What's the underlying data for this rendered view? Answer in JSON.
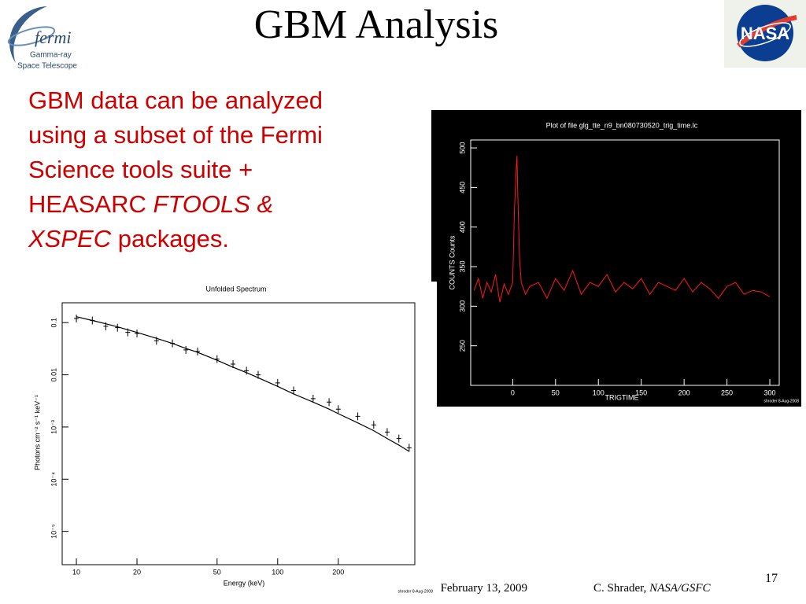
{
  "header": {
    "title": "GBM Analysis",
    "logo_name": "fermi",
    "logo_line1": "Gamma-ray",
    "logo_line2": "Space Telescope",
    "agency": "NASA"
  },
  "body": {
    "segments": [
      "GBM data can be analyzed",
      "using a subset of the Fermi",
      "Science tools suite +",
      "HEASARC ",
      "FTOOLS &",
      "XSPEC",
      " packages."
    ]
  },
  "footer": {
    "date": "February 13, 2009",
    "author": "C. Shrader, ",
    "org": "NASA/GSFC",
    "page": "17"
  },
  "chart_data": [
    {
      "type": "line",
      "title": "Plot of file glg_tte_n9_bn080730520_trig_time.lc",
      "x_label": "TRIGTIME",
      "y_label": "COUNTS  Counts",
      "credit": "shroder  8-Aug-2008",
      "color": "#ff1a1a",
      "x": [
        -45,
        -40,
        -35,
        -30,
        -25,
        -20,
        -15,
        -10,
        -5,
        0,
        2,
        4,
        5,
        6,
        8,
        10,
        15,
        20,
        30,
        40,
        50,
        60,
        70,
        80,
        90,
        100,
        110,
        120,
        130,
        140,
        150,
        160,
        170,
        180,
        190,
        200,
        210,
        220,
        230,
        240,
        250,
        260,
        270,
        280,
        290,
        300
      ],
      "values": [
        320,
        335,
        310,
        330,
        318,
        340,
        305,
        328,
        315,
        330,
        420,
        470,
        490,
        440,
        360,
        330,
        315,
        325,
        330,
        310,
        335,
        320,
        345,
        315,
        330,
        325,
        340,
        318,
        330,
        322,
        335,
        315,
        330,
        325,
        320,
        335,
        318,
        330,
        322,
        310,
        325,
        330,
        315,
        320,
        318,
        312
      ],
      "xlim": [
        -49,
        311
      ],
      "xticks": [
        0,
        50,
        100,
        150,
        200,
        250,
        300
      ],
      "ylim": [
        200,
        510
      ],
      "yticks": [
        250,
        300,
        350,
        400,
        450,
        500
      ]
    },
    {
      "type": "scatter",
      "title": "Unfolded Spectrum",
      "x_label": "Energy (keV)",
      "y_label": "Photons cm⁻² s⁻¹ keV⁻¹",
      "credit": "shroder  8-Aug-2008",
      "log_x": true,
      "log_y": true,
      "x": [
        10,
        12,
        14,
        16,
        18,
        20,
        25,
        30,
        35,
        40,
        50,
        60,
        70,
        80,
        100,
        120,
        150,
        180,
        200,
        250,
        300,
        350,
        400,
        450
      ],
      "series": [
        {
          "mode": "markers",
          "color": "#000000",
          "values": [
            0.12,
            0.11,
            0.085,
            0.08,
            0.065,
            0.062,
            0.045,
            0.04,
            0.03,
            0.028,
            0.02,
            0.016,
            0.012,
            0.01,
            0.007,
            0.005,
            0.0035,
            0.003,
            0.0022,
            0.0016,
            0.0011,
            0.0008,
            0.0006,
            0.0004
          ]
        },
        {
          "mode": "line",
          "color": "#000000",
          "values": [
            0.13,
            0.11,
            0.095,
            0.083,
            0.073,
            0.065,
            0.05,
            0.04,
            0.032,
            0.027,
            0.019,
            0.014,
            0.011,
            0.0088,
            0.006,
            0.0043,
            0.003,
            0.0022,
            0.0018,
            0.0012,
            0.00085,
            0.0006,
            0.00045,
            0.00034
          ]
        }
      ],
      "xlim": [
        8.5,
        480
      ],
      "xticks": [
        10,
        20,
        50,
        100,
        200
      ],
      "ylim": [
        2.3e-06,
        0.24
      ],
      "yticks": [
        {
          "value": 0.1,
          "label": "0.1"
        },
        {
          "value": 0.01,
          "label": "0.01"
        },
        {
          "value": 0.001,
          "label": "10⁻³"
        },
        {
          "value": 0.0001,
          "label": "10⁻⁴"
        },
        {
          "value": 1e-05,
          "label": "10⁻⁵"
        }
      ]
    }
  ]
}
